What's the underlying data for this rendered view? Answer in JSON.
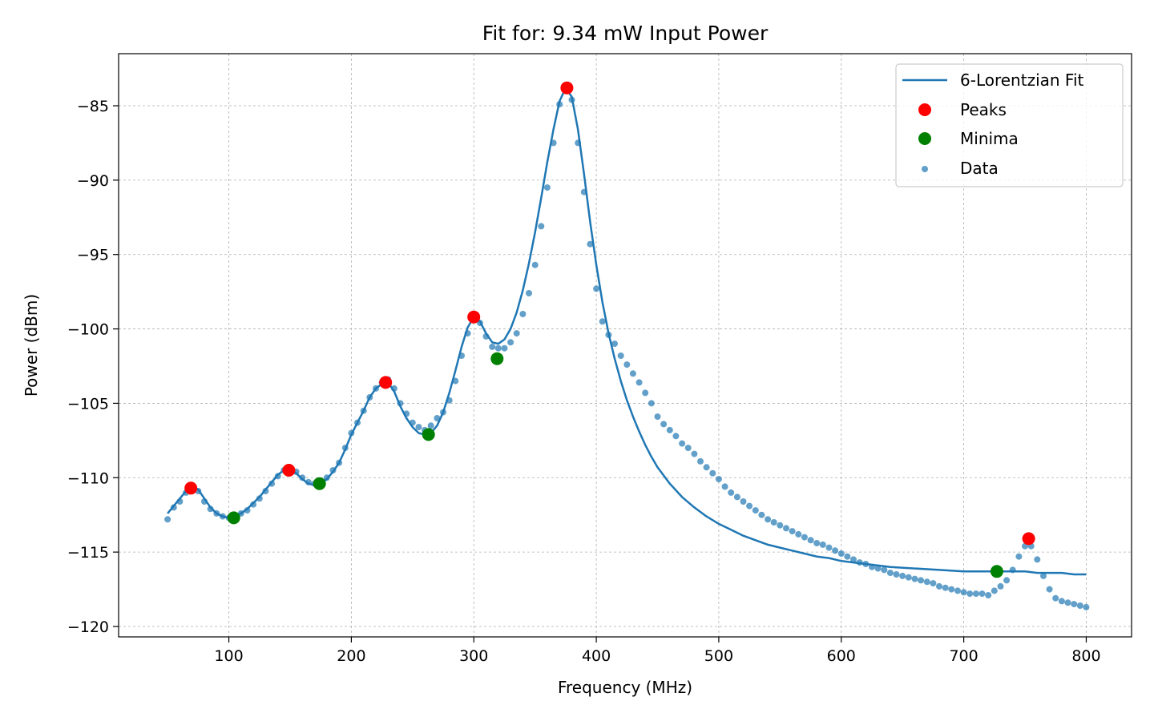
{
  "chart_data": {
    "type": "scatter",
    "title": "Fit for: 9.34 mW Input Power",
    "xlabel": "Frequency (MHz)",
    "ylabel": "Power (dBm)",
    "xlim": [
      10,
      837
    ],
    "ylim": [
      -120.7,
      -81.5
    ],
    "xticks": [
      100,
      200,
      300,
      400,
      500,
      600,
      700,
      800
    ],
    "yticks": [
      -85,
      -90,
      -95,
      -100,
      -105,
      -110,
      -115,
      -120
    ],
    "grid": true,
    "legend_position": "top-right",
    "legend": [
      {
        "label": "6-Lorentzian Fit",
        "kind": "line",
        "color": "#1f77b4"
      },
      {
        "label": "Peaks",
        "kind": "marker",
        "color": "#ff0000"
      },
      {
        "label": "Minima",
        "kind": "marker",
        "color": "#008000"
      },
      {
        "label": "Data",
        "kind": "scatter",
        "color": "#1f77b4"
      }
    ],
    "data_series": {
      "name": "Data",
      "color": "#1f77b4",
      "points": [
        [
          50,
          -112.8
        ],
        [
          55,
          -112.0
        ],
        [
          60,
          -111.6
        ],
        [
          65,
          -111.0
        ],
        [
          70,
          -110.5
        ],
        [
          75,
          -110.9
        ],
        [
          80,
          -111.6
        ],
        [
          85,
          -112.1
        ],
        [
          90,
          -112.4
        ],
        [
          95,
          -112.6
        ],
        [
          100,
          -112.7
        ],
        [
          105,
          -112.7
        ],
        [
          110,
          -112.4
        ],
        [
          115,
          -112.2
        ],
        [
          120,
          -111.8
        ],
        [
          125,
          -111.4
        ],
        [
          130,
          -110.9
        ],
        [
          135,
          -110.4
        ],
        [
          140,
          -109.9
        ],
        [
          145,
          -109.5
        ],
        [
          150,
          -109.3
        ],
        [
          155,
          -109.6
        ],
        [
          160,
          -110.0
        ],
        [
          165,
          -110.3
        ],
        [
          170,
          -110.4
        ],
        [
          175,
          -110.4
        ],
        [
          180,
          -110.0
        ],
        [
          185,
          -109.5
        ],
        [
          190,
          -109.0
        ],
        [
          195,
          -108.0
        ],
        [
          200,
          -107.0
        ],
        [
          205,
          -106.3
        ],
        [
          210,
          -105.5
        ],
        [
          215,
          -104.6
        ],
        [
          220,
          -104.0
        ],
        [
          225,
          -103.6
        ],
        [
          230,
          -103.4
        ],
        [
          235,
          -104.0
        ],
        [
          240,
          -105.0
        ],
        [
          245,
          -105.7
        ],
        [
          250,
          -106.3
        ],
        [
          255,
          -106.6
        ],
        [
          260,
          -106.8
        ],
        [
          265,
          -106.5
        ],
        [
          270,
          -106.0
        ],
        [
          275,
          -105.6
        ],
        [
          280,
          -104.8
        ],
        [
          285,
          -103.5
        ],
        [
          290,
          -101.8
        ],
        [
          295,
          -100.3
        ],
        [
          300,
          -99.4
        ],
        [
          305,
          -99.6
        ],
        [
          310,
          -100.5
        ],
        [
          315,
          -101.2
        ],
        [
          320,
          -101.3
        ],
        [
          325,
          -101.3
        ],
        [
          330,
          -100.9
        ],
        [
          335,
          -100.3
        ],
        [
          340,
          -99.0
        ],
        [
          345,
          -97.6
        ],
        [
          350,
          -95.7
        ],
        [
          355,
          -93.1
        ],
        [
          360,
          -90.5
        ],
        [
          365,
          -87.5
        ],
        [
          370,
          -84.9
        ],
        [
          375,
          -83.6
        ],
        [
          380,
          -84.6
        ],
        [
          385,
          -87.5
        ],
        [
          390,
          -90.8
        ],
        [
          395,
          -94.3
        ],
        [
          400,
          -97.3
        ],
        [
          405,
          -99.5
        ],
        [
          410,
          -100.4
        ],
        [
          415,
          -101.0
        ],
        [
          420,
          -101.8
        ],
        [
          425,
          -102.4
        ],
        [
          430,
          -103.0
        ],
        [
          435,
          -103.6
        ],
        [
          440,
          -104.3
        ],
        [
          445,
          -105.0
        ],
        [
          450,
          -105.9
        ],
        [
          455,
          -106.4
        ],
        [
          460,
          -106.8
        ],
        [
          465,
          -107.2
        ],
        [
          470,
          -107.7
        ],
        [
          475,
          -108.0
        ],
        [
          480,
          -108.4
        ],
        [
          485,
          -108.9
        ],
        [
          490,
          -109.3
        ],
        [
          495,
          -109.7
        ],
        [
          500,
          -110.1
        ],
        [
          505,
          -110.6
        ],
        [
          510,
          -111.0
        ],
        [
          515,
          -111.3
        ],
        [
          520,
          -111.6
        ],
        [
          525,
          -111.9
        ],
        [
          530,
          -112.2
        ],
        [
          535,
          -112.5
        ],
        [
          540,
          -112.8
        ],
        [
          545,
          -113.0
        ],
        [
          550,
          -113.2
        ],
        [
          555,
          -113.4
        ],
        [
          560,
          -113.6
        ],
        [
          565,
          -113.8
        ],
        [
          570,
          -114.0
        ],
        [
          575,
          -114.2
        ],
        [
          580,
          -114.4
        ],
        [
          585,
          -114.5
        ],
        [
          590,
          -114.7
        ],
        [
          595,
          -114.9
        ],
        [
          600,
          -115.1
        ],
        [
          605,
          -115.3
        ],
        [
          610,
          -115.5
        ],
        [
          615,
          -115.7
        ],
        [
          620,
          -115.8
        ],
        [
          625,
          -116.0
        ],
        [
          630,
          -116.1
        ],
        [
          635,
          -116.2
        ],
        [
          640,
          -116.4
        ],
        [
          645,
          -116.5
        ],
        [
          650,
          -116.6
        ],
        [
          655,
          -116.7
        ],
        [
          660,
          -116.8
        ],
        [
          665,
          -116.9
        ],
        [
          670,
          -117.0
        ],
        [
          675,
          -117.1
        ],
        [
          680,
          -117.3
        ],
        [
          685,
          -117.4
        ],
        [
          690,
          -117.5
        ],
        [
          695,
          -117.6
        ],
        [
          700,
          -117.7
        ],
        [
          705,
          -117.8
        ],
        [
          710,
          -117.8
        ],
        [
          715,
          -117.8
        ],
        [
          720,
          -117.9
        ],
        [
          725,
          -117.6
        ],
        [
          730,
          -117.3
        ],
        [
          735,
          -116.9
        ],
        [
          740,
          -116.2
        ],
        [
          745,
          -115.3
        ],
        [
          750,
          -114.6
        ],
        [
          755,
          -114.6
        ],
        [
          760,
          -115.5
        ],
        [
          765,
          -116.6
        ],
        [
          770,
          -117.5
        ],
        [
          775,
          -118.1
        ],
        [
          780,
          -118.3
        ],
        [
          785,
          -118.4
        ],
        [
          790,
          -118.5
        ],
        [
          795,
          -118.6
        ],
        [
          800,
          -118.7
        ]
      ]
    },
    "fit_series": {
      "name": "6-Lorentzian Fit",
      "color": "#1f77b4",
      "points": [
        [
          50,
          -112.4
        ],
        [
          55,
          -111.9
        ],
        [
          60,
          -111.4
        ],
        [
          65,
          -110.9
        ],
        [
          70,
          -110.6
        ],
        [
          75,
          -110.8
        ],
        [
          80,
          -111.4
        ],
        [
          85,
          -112.0
        ],
        [
          90,
          -112.4
        ],
        [
          95,
          -112.6
        ],
        [
          100,
          -112.7
        ],
        [
          105,
          -112.6
        ],
        [
          110,
          -112.4
        ],
        [
          115,
          -112.1
        ],
        [
          120,
          -111.7
        ],
        [
          125,
          -111.3
        ],
        [
          130,
          -110.8
        ],
        [
          135,
          -110.3
        ],
        [
          140,
          -109.8
        ],
        [
          145,
          -109.5
        ],
        [
          150,
          -109.4
        ],
        [
          155,
          -109.7
        ],
        [
          160,
          -110.1
        ],
        [
          165,
          -110.4
        ],
        [
          170,
          -110.5
        ],
        [
          175,
          -110.4
        ],
        [
          180,
          -110.1
        ],
        [
          185,
          -109.6
        ],
        [
          190,
          -109.0
        ],
        [
          195,
          -108.1
        ],
        [
          200,
          -107.1
        ],
        [
          205,
          -106.3
        ],
        [
          210,
          -105.5
        ],
        [
          215,
          -104.6
        ],
        [
          220,
          -104.0
        ],
        [
          225,
          -103.7
        ],
        [
          230,
          -103.6
        ],
        [
          235,
          -104.2
        ],
        [
          240,
          -105.2
        ],
        [
          245,
          -106.0
        ],
        [
          250,
          -106.6
        ],
        [
          255,
          -107.0
        ],
        [
          260,
          -107.1
        ],
        [
          265,
          -107.0
        ],
        [
          270,
          -106.5
        ],
        [
          275,
          -105.6
        ],
        [
          280,
          -104.3
        ],
        [
          285,
          -102.8
        ],
        [
          290,
          -101.2
        ],
        [
          295,
          -99.9
        ],
        [
          300,
          -99.2
        ],
        [
          305,
          -99.5
        ],
        [
          310,
          -100.3
        ],
        [
          315,
          -100.9
        ],
        [
          320,
          -101.0
        ],
        [
          325,
          -100.7
        ],
        [
          330,
          -100.0
        ],
        [
          335,
          -98.9
        ],
        [
          340,
          -97.4
        ],
        [
          345,
          -95.6
        ],
        [
          350,
          -93.5
        ],
        [
          355,
          -91.2
        ],
        [
          360,
          -88.8
        ],
        [
          365,
          -86.6
        ],
        [
          370,
          -84.7
        ],
        [
          375,
          -83.8
        ],
        [
          380,
          -84.4
        ],
        [
          385,
          -86.6
        ],
        [
          390,
          -89.6
        ],
        [
          395,
          -92.8
        ],
        [
          400,
          -95.7
        ],
        [
          405,
          -98.2
        ],
        [
          410,
          -100.3
        ],
        [
          415,
          -102.0
        ],
        [
          420,
          -103.5
        ],
        [
          425,
          -104.8
        ],
        [
          430,
          -105.9
        ],
        [
          435,
          -106.9
        ],
        [
          440,
          -107.8
        ],
        [
          445,
          -108.6
        ],
        [
          450,
          -109.3
        ],
        [
          460,
          -110.4
        ],
        [
          470,
          -111.3
        ],
        [
          480,
          -112.0
        ],
        [
          490,
          -112.6
        ],
        [
          500,
          -113.1
        ],
        [
          510,
          -113.5
        ],
        [
          520,
          -113.9
        ],
        [
          530,
          -114.2
        ],
        [
          540,
          -114.5
        ],
        [
          550,
          -114.7
        ],
        [
          560,
          -114.9
        ],
        [
          570,
          -115.1
        ],
        [
          580,
          -115.3
        ],
        [
          590,
          -115.4
        ],
        [
          600,
          -115.6
        ],
        [
          620,
          -115.8
        ],
        [
          640,
          -116.0
        ],
        [
          660,
          -116.1
        ],
        [
          680,
          -116.2
        ],
        [
          700,
          -116.3
        ],
        [
          710,
          -116.3
        ],
        [
          720,
          -116.3
        ],
        [
          730,
          -116.3
        ],
        [
          740,
          -116.3
        ],
        [
          750,
          -116.3
        ],
        [
          760,
          -116.4
        ],
        [
          770,
          -116.4
        ],
        [
          780,
          -116.4
        ],
        [
          790,
          -116.5
        ],
        [
          800,
          -116.5
        ]
      ]
    },
    "peaks": {
      "name": "Peaks",
      "color": "#ff0000",
      "points": [
        [
          69,
          -110.7
        ],
        [
          149,
          -109.5
        ],
        [
          228,
          -103.6
        ],
        [
          300,
          -99.2
        ],
        [
          376,
          -83.8
        ],
        [
          753,
          -114.1
        ]
      ]
    },
    "minima": {
      "name": "Minima",
      "color": "#008000",
      "points": [
        [
          104,
          -112.7
        ],
        [
          174,
          -110.4
        ],
        [
          263,
          -107.1
        ],
        [
          319,
          -102.0
        ],
        [
          727,
          -116.3
        ]
      ]
    }
  }
}
